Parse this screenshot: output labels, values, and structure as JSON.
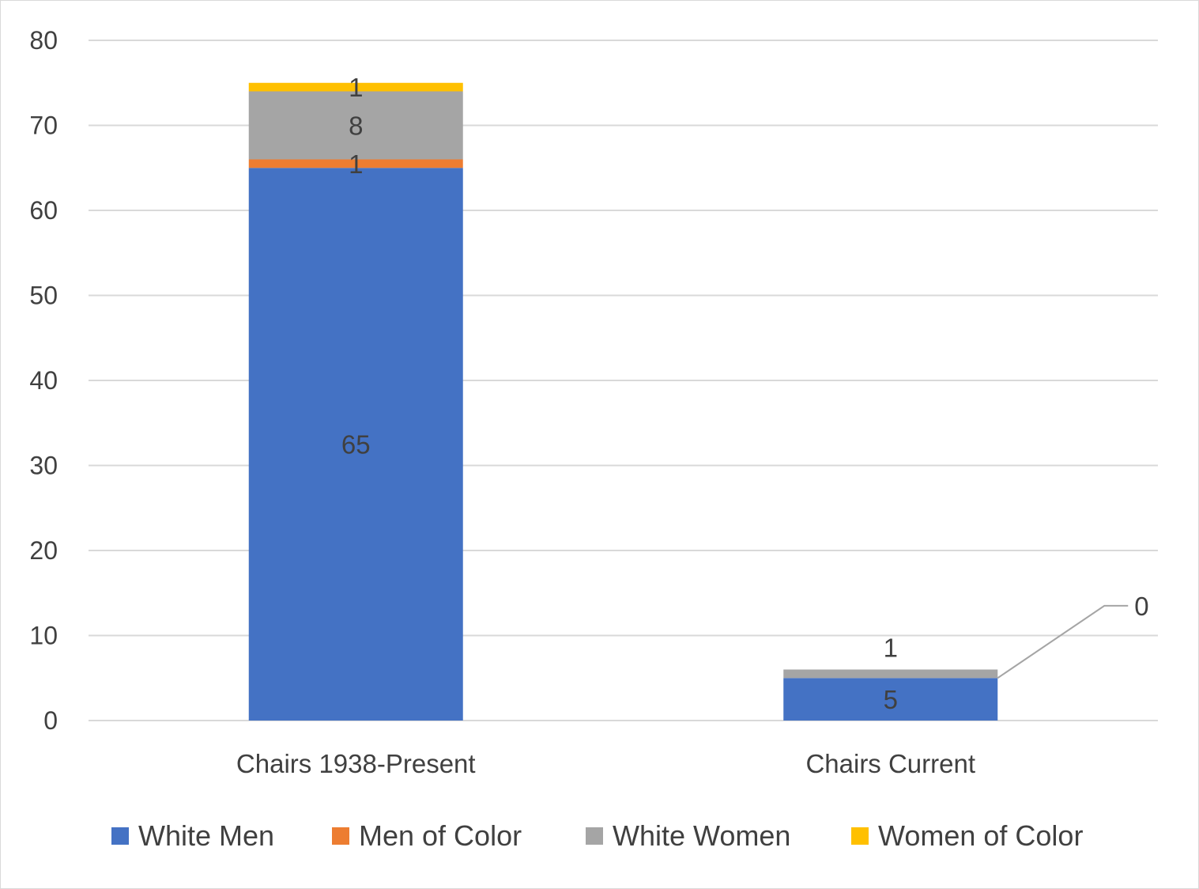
{
  "chart_data": {
    "type": "bar",
    "stacked": true,
    "title": "",
    "xlabel": "",
    "ylabel": "",
    "ylim": [
      0,
      80
    ],
    "yticks": [
      0,
      10,
      20,
      30,
      40,
      50,
      60,
      70,
      80
    ],
    "grid": true,
    "legend_position": "bottom",
    "categories": [
      "Chairs 1938-Present",
      "Chairs Current"
    ],
    "series": [
      {
        "name": "White Men",
        "color": "#4472c4",
        "values": [
          65,
          5
        ]
      },
      {
        "name": "Men of Color",
        "color": "#ed7d31",
        "values": [
          1,
          0
        ]
      },
      {
        "name": "White Women",
        "color": "#a5a5a5",
        "values": [
          8,
          1
        ]
      },
      {
        "name": "Women of Color",
        "color": "#ffc000",
        "values": [
          1,
          0
        ]
      }
    ],
    "data_labels": [
      [
        "65",
        "5"
      ],
      [
        "1",
        "0"
      ],
      [
        "8",
        "1"
      ],
      [
        "1",
        ""
      ]
    ]
  }
}
